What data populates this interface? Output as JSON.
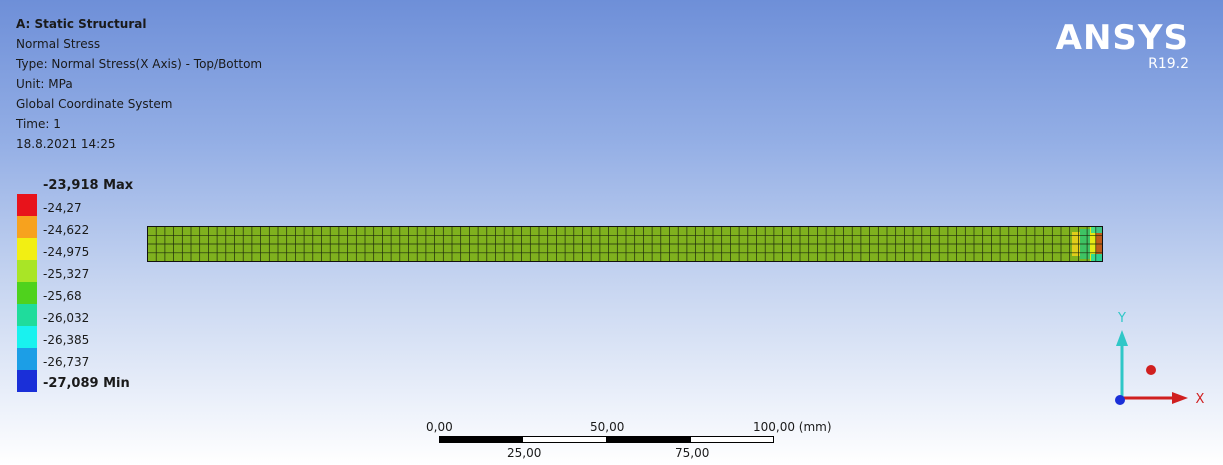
{
  "info": {
    "title": "A: Static Structural",
    "result": "Normal Stress",
    "type": "Type: Normal Stress(X Axis) - Top/Bottom",
    "unit": "Unit: MPa",
    "coord": "Global Coordinate System",
    "time": "Time: 1",
    "date": "18.8.2021 14:25"
  },
  "logo": {
    "name": "ANSYS",
    "version": "R19.2"
  },
  "legend": {
    "max_label": "-23,918 Max",
    "labels": [
      "-24,27",
      "-24,622",
      "-24,975",
      "-25,327",
      "-25,68",
      "-26,032",
      "-26,385",
      "-26,737"
    ],
    "min_label": "-27,089 Min",
    "colors": [
      "#e8131b",
      "#f7a21e",
      "#f2ef13",
      "#a9e526",
      "#4fd21d",
      "#1fdc9c",
      "#19f2ef",
      "#1c9ee6",
      "#1a2fd8"
    ]
  },
  "scale": {
    "top_labels": [
      "0,00",
      "50,00",
      "100,00 (mm)"
    ],
    "bottom_labels": [
      "25,00",
      "75,00"
    ]
  },
  "triad": {
    "y_label": "Y",
    "x_label": "X"
  },
  "mesh": {
    "fill_color": "#7fb11e",
    "line_color": "#1e2a0c"
  }
}
